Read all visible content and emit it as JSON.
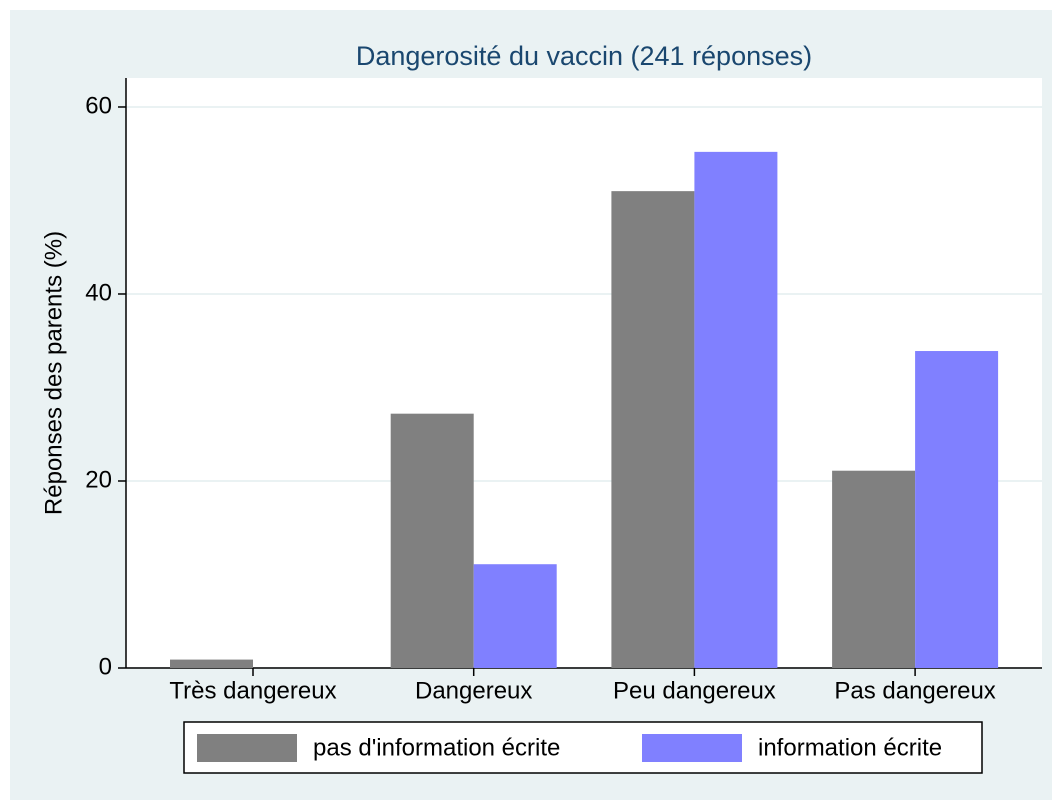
{
  "chart_data": {
    "type": "bar",
    "title": "Dangerosité du vaccin (241 réponses)",
    "y_label": "Réponses des parents (%)",
    "categories": [
      "Très dangereux",
      "Dangereux",
      "Peu dangereux",
      "Pas dangereux"
    ],
    "series": [
      {
        "name": "pas d'information écrite",
        "color": "#808080",
        "values": [
          0.9,
          27.2,
          51.0,
          21.1
        ]
      },
      {
        "name": "information écrite",
        "color": "#8080ff",
        "values": [
          0,
          11.1,
          55.2,
          33.9
        ]
      }
    ],
    "ylim": [
      0,
      63.1
    ],
    "yticks": [
      0,
      20,
      40,
      60
    ],
    "grid": true,
    "legend": "bottom"
  }
}
